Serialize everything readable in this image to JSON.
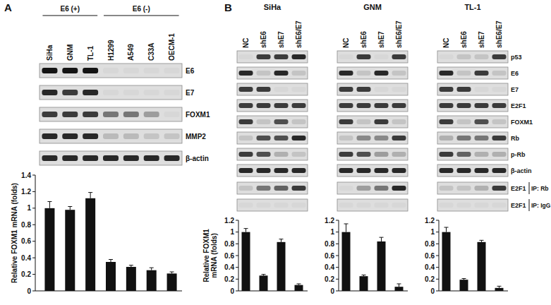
{
  "chart_data": [
    {
      "type": "bar",
      "ylabel": "Relative FOXM1 mRNA  (folds)",
      "categories": [
        null,
        null,
        null,
        null,
        null,
        null,
        null
      ],
      "values": [
        1.0,
        0.98,
        1.12,
        0.35,
        0.29,
        0.25,
        0.21
      ],
      "errors": [
        0.08,
        0.04,
        0.07,
        0.03,
        0.02,
        0.03,
        0.02
      ],
      "color": "#111111",
      "ylim": [
        0,
        1.4
      ],
      "yticks": [
        0,
        0.2,
        0.4,
        0.6,
        0.8,
        1,
        1.2,
        1.4
      ],
      "tick_labels": "y"
    },
    {
      "type": "bar",
      "ylabel": "Relative FOXM1 mRNA (folds)",
      "categories": [
        null,
        null,
        null,
        null
      ],
      "values": [
        1.0,
        0.26,
        0.83,
        0.1
      ],
      "errors": [
        0.06,
        0.02,
        0.05,
        0.02
      ],
      "color": "#111111",
      "ylim": [
        0,
        1.2
      ],
      "yticks": [
        0,
        0.2,
        0.4,
        0.6,
        0.8,
        1,
        1.2
      ],
      "tick_labels": "y"
    },
    {
      "type": "bar",
      "categories": [
        null,
        null,
        null,
        null
      ],
      "values": [
        1.0,
        0.25,
        0.84,
        0.07
      ],
      "errors": [
        0.14,
        0.02,
        0.07,
        0.05
      ],
      "color": "#111111",
      "ylim": [
        0,
        1.2
      ],
      "yticks": [
        0,
        0.2,
        0.4,
        0.6,
        0.8,
        1,
        1.2
      ],
      "tick_labels": "y"
    },
    {
      "type": "bar",
      "categories": [
        null,
        null,
        null,
        null
      ],
      "values": [
        1.0,
        0.19,
        0.83,
        0.05
      ],
      "errors": [
        0.08,
        0.02,
        0.03,
        0.03
      ],
      "color": "#111111",
      "ylim": [
        0,
        1.2
      ],
      "yticks": [
        0,
        0.2,
        0.4,
        0.6,
        0.8,
        1,
        1.2
      ],
      "tick_labels": "y"
    }
  ],
  "panel_a": {
    "label": "A",
    "groups": [
      {
        "label": "E6 (+)",
        "lanes": [
          "SiHa",
          "GNM",
          "TL-1"
        ]
      },
      {
        "label": "E6 (-)",
        "lanes": [
          "H1299",
          "A549",
          "C33A",
          "OECM-1"
        ]
      }
    ],
    "rows": [
      {
        "label": "E6",
        "intensity": [
          1,
          1,
          1,
          0,
          0,
          0,
          0
        ]
      },
      {
        "label": "E7",
        "intensity": [
          0.9,
          0.8,
          0.9,
          0,
          0,
          0,
          0
        ]
      },
      {
        "label": "FOXM1",
        "intensity": [
          0.8,
          0.8,
          0.8,
          0.5,
          0.5,
          0.3,
          0
        ]
      },
      {
        "label": "MMP2",
        "intensity": [
          0.9,
          0.9,
          0.9,
          0.15,
          0.15,
          0.1,
          0.1
        ]
      },
      {
        "label": "β-actin",
        "intensity": [
          0.9,
          0.9,
          0.9,
          0.9,
          0.9,
          0.9,
          0.9
        ]
      }
    ]
  },
  "panel_b": {
    "label": "B",
    "lanes": [
      "NC",
      "shE6",
      "shE7",
      "shE6/E7"
    ],
    "row_labels": [
      "p53",
      "E6",
      "E7",
      "E2F1",
      "FOXM1",
      "Rb",
      "p-Rb",
      "β-actin"
    ],
    "ip_rows": [
      {
        "label": "E2F1",
        "ip": "IP: Rb"
      },
      {
        "label": "E2F1",
        "ip": "IP: IgG"
      }
    ],
    "cells": [
      {
        "name": "SiHa",
        "intensity": [
          [
            0,
            0.8,
            0.8,
            0.9
          ],
          [
            0.9,
            0.1,
            0.9,
            0.1
          ],
          [
            0.8,
            0.8,
            0,
            0
          ],
          [
            0.8,
            0.8,
            0.8,
            0.8
          ],
          [
            0.8,
            0.1,
            0.7,
            0.1
          ],
          [
            0.1,
            0.7,
            0.7,
            0.9
          ],
          [
            0.8,
            0.7,
            0.2,
            0.1
          ],
          [
            0.9,
            0.9,
            0.9,
            0.9
          ]
        ],
        "ip_intensity": [
          [
            0.1,
            0.5,
            0.6,
            0.8
          ],
          [
            0,
            0,
            0,
            0
          ]
        ]
      },
      {
        "name": "GNM",
        "intensity": [
          [
            0,
            0.8,
            0,
            0.8
          ],
          [
            0.9,
            0.1,
            0.9,
            0.1
          ],
          [
            0.8,
            0.8,
            0,
            0
          ],
          [
            0.8,
            0.8,
            0.8,
            0.8
          ],
          [
            0.8,
            0.1,
            0.8,
            0.1
          ],
          [
            0.1,
            0.4,
            0.4,
            0.8
          ],
          [
            0.8,
            0.7,
            0.3,
            0.2
          ],
          [
            0.9,
            0.9,
            0.9,
            0.9
          ]
        ],
        "ip_intensity": [
          [
            0,
            0.3,
            0.5,
            0.9
          ],
          [
            0,
            0,
            0,
            0
          ]
        ]
      },
      {
        "name": "TL-1",
        "intensity": [
          [
            0,
            0.1,
            0.1,
            0.8
          ],
          [
            0.9,
            0.1,
            0.8,
            0.1
          ],
          [
            0.8,
            0.8,
            0,
            0
          ],
          [
            0.8,
            0.8,
            0.8,
            0.8
          ],
          [
            0.8,
            0.1,
            0.7,
            0.1
          ],
          [
            0.2,
            0.5,
            0.5,
            0.8
          ],
          [
            0.8,
            0.6,
            0.2,
            0.2
          ],
          [
            0.9,
            0.9,
            0.9,
            0.9
          ]
        ],
        "ip_intensity": [
          [
            0.1,
            0.1,
            0.2,
            0.8
          ],
          [
            0,
            0,
            0,
            0
          ]
        ]
      }
    ]
  }
}
